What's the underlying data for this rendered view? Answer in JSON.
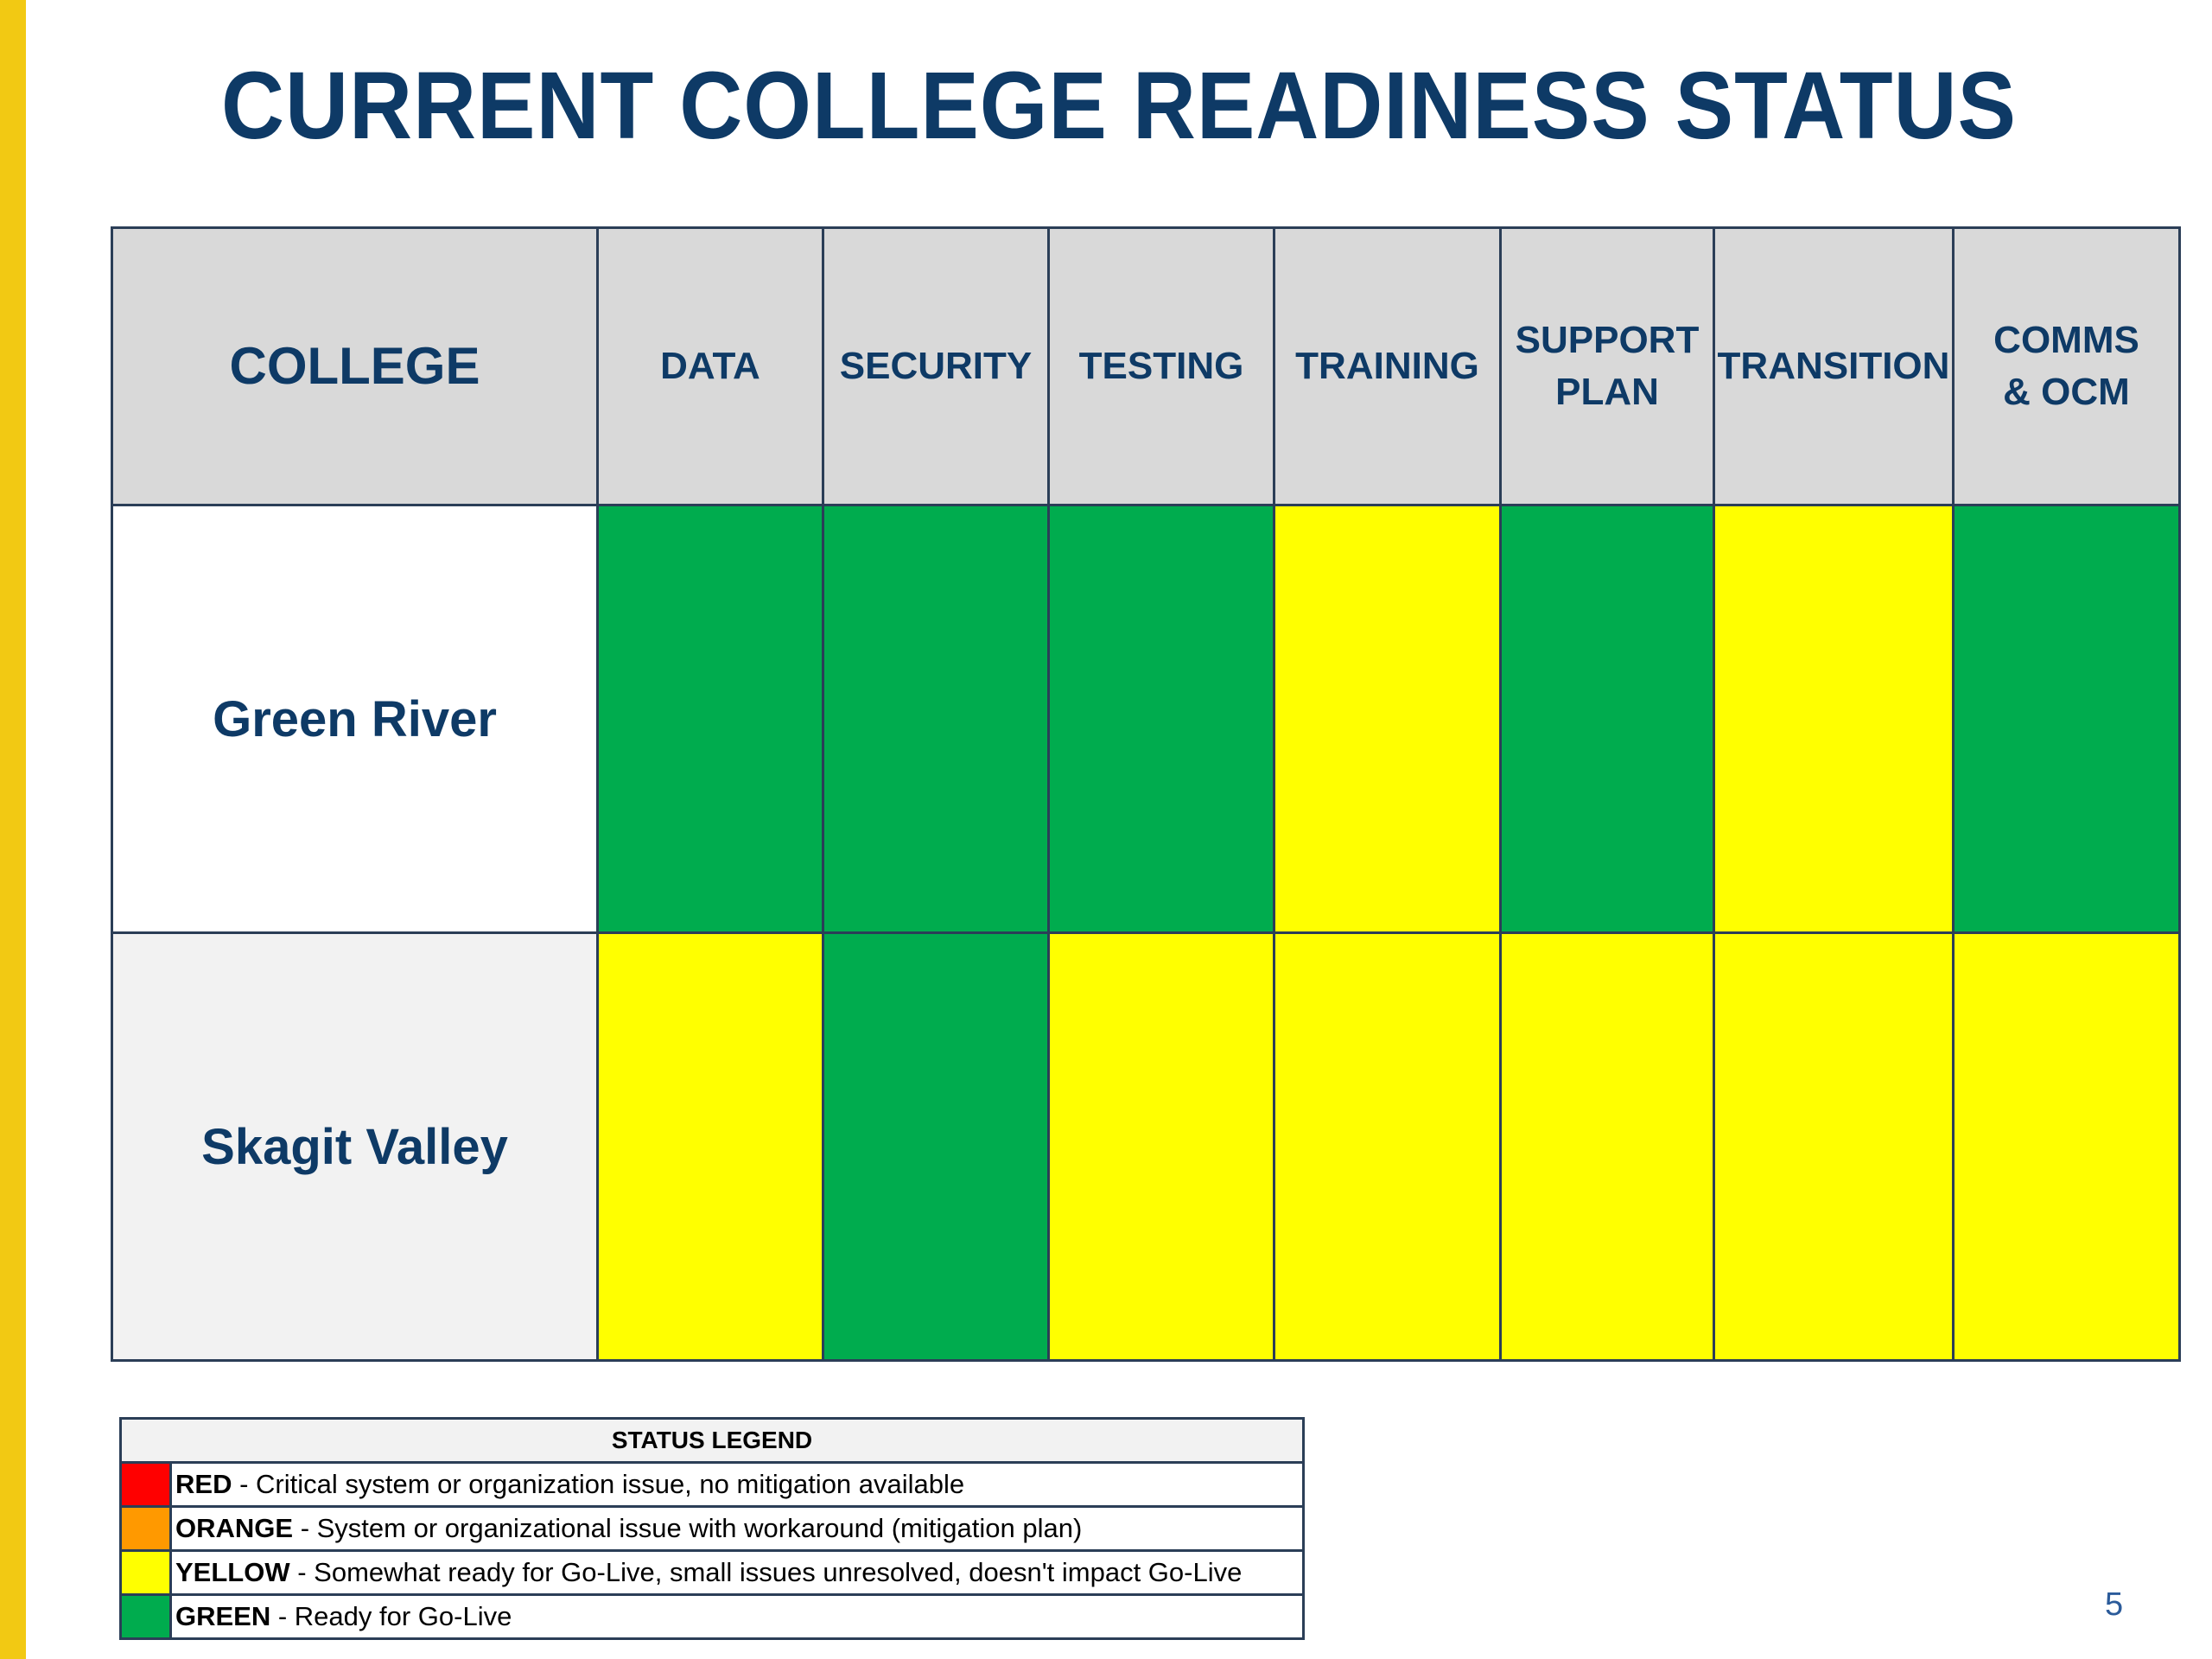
{
  "slide": {
    "title": "CURRENT COLLEGE READINESS STATUS",
    "page_number": "5"
  },
  "colors": {
    "accent_bar": "#F2C913",
    "title": "#0E3A66",
    "red": "#FF0000",
    "orange": "#FF9900",
    "yellow": "#FFFF00",
    "green": "#00AC4E"
  },
  "table": {
    "college_header": "COLLEGE",
    "columns": [
      "DATA",
      "SECURITY",
      "TESTING",
      "TRAINING",
      "SUPPORT\nPLAN",
      "TRANSITION",
      "COMMS\n& OCM"
    ],
    "rows": [
      {
        "college": "Green River",
        "statuses": [
          "green",
          "green",
          "green",
          "yellow",
          "green",
          "yellow",
          "green"
        ]
      },
      {
        "college": "Skagit Valley",
        "statuses": [
          "yellow",
          "green",
          "yellow",
          "yellow",
          "yellow",
          "yellow",
          "yellow"
        ]
      }
    ]
  },
  "legend": {
    "title": "STATUS LEGEND",
    "items": [
      {
        "color": "red",
        "label": "RED",
        "description": " - Critical system or organization issue, no mitigation available"
      },
      {
        "color": "orange",
        "label": "ORANGE",
        "description": " - System or organizational issue with workaround (mitigation plan)"
      },
      {
        "color": "yellow",
        "label": "YELLOW",
        "description": " - Somewhat ready for Go-Live, small issues unresolved, doesn't impact Go-Live"
      },
      {
        "color": "green",
        "label": "GREEN",
        "description": " - Ready for Go-Live"
      }
    ]
  }
}
